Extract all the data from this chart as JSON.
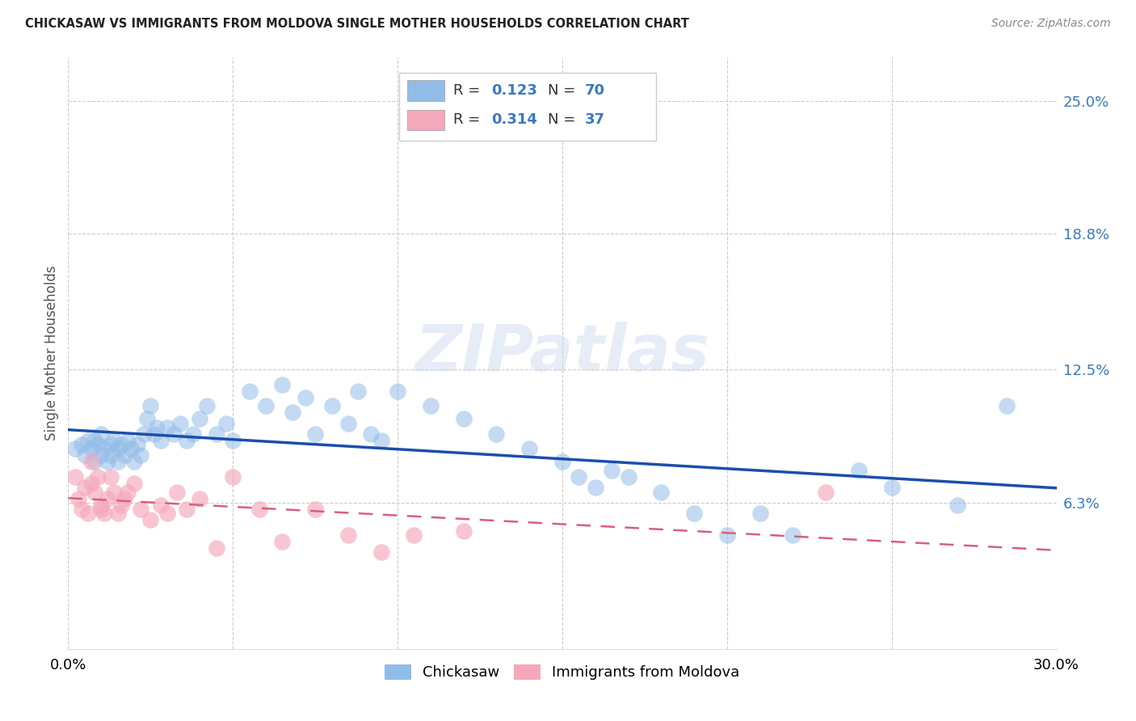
{
  "title": "CHICKASAW VS IMMIGRANTS FROM MOLDOVA SINGLE MOTHER HOUSEHOLDS CORRELATION CHART",
  "source": "Source: ZipAtlas.com",
  "ylabel": "Single Mother Households",
  "xlim": [
    0.0,
    0.3
  ],
  "ylim": [
    -0.005,
    0.27
  ],
  "yticks": [
    0.063,
    0.125,
    0.188,
    0.25
  ],
  "ytick_labels": [
    "6.3%",
    "12.5%",
    "18.8%",
    "25.0%"
  ],
  "xticks": [
    0.0,
    0.05,
    0.1,
    0.15,
    0.2,
    0.25,
    0.3
  ],
  "xtick_labels": [
    "0.0%",
    "",
    "",
    "",
    "",
    "",
    "30.0%"
  ],
  "grid_color": "#cccccc",
  "background_color": "#ffffff",
  "series1_color": "#92bce8",
  "series2_color": "#f5a8bc",
  "series1_label": "Chickasaw",
  "series2_label": "Immigrants from Moldova",
  "R1": "0.123",
  "N1": "70",
  "R2": "0.314",
  "N2": "37",
  "trend1_color": "#1a4faa",
  "trend2_color": "#d95f7a",
  "watermark": "ZIPatlas",
  "chickasaw_x": [
    0.002,
    0.004,
    0.005,
    0.006,
    0.007,
    0.008,
    0.008,
    0.009,
    0.01,
    0.01,
    0.011,
    0.012,
    0.013,
    0.013,
    0.014,
    0.015,
    0.015,
    0.016,
    0.017,
    0.018,
    0.019,
    0.02,
    0.021,
    0.022,
    0.023,
    0.024,
    0.025,
    0.026,
    0.027,
    0.028,
    0.03,
    0.032,
    0.034,
    0.036,
    0.038,
    0.04,
    0.042,
    0.045,
    0.048,
    0.05,
    0.055,
    0.06,
    0.065,
    0.068,
    0.072,
    0.075,
    0.08,
    0.085,
    0.088,
    0.092,
    0.095,
    0.1,
    0.11,
    0.12,
    0.13,
    0.14,
    0.15,
    0.155,
    0.16,
    0.165,
    0.17,
    0.18,
    0.19,
    0.2,
    0.21,
    0.22,
    0.24,
    0.25,
    0.27,
    0.285
  ],
  "chickasaw_y": [
    0.088,
    0.09,
    0.085,
    0.092,
    0.088,
    0.092,
    0.082,
    0.09,
    0.085,
    0.095,
    0.088,
    0.082,
    0.09,
    0.085,
    0.092,
    0.088,
    0.082,
    0.09,
    0.085,
    0.092,
    0.088,
    0.082,
    0.09,
    0.085,
    0.095,
    0.102,
    0.108,
    0.095,
    0.098,
    0.092,
    0.098,
    0.095,
    0.1,
    0.092,
    0.095,
    0.102,
    0.108,
    0.095,
    0.1,
    0.092,
    0.115,
    0.108,
    0.118,
    0.105,
    0.112,
    0.095,
    0.108,
    0.1,
    0.115,
    0.095,
    0.092,
    0.115,
    0.108,
    0.102,
    0.095,
    0.088,
    0.082,
    0.075,
    0.07,
    0.078,
    0.075,
    0.068,
    0.058,
    0.048,
    0.058,
    0.048,
    0.078,
    0.07,
    0.062,
    0.108
  ],
  "moldova_x": [
    0.002,
    0.003,
    0.004,
    0.005,
    0.006,
    0.007,
    0.007,
    0.008,
    0.009,
    0.01,
    0.01,
    0.011,
    0.012,
    0.013,
    0.014,
    0.015,
    0.016,
    0.017,
    0.018,
    0.02,
    0.022,
    0.025,
    0.028,
    0.03,
    0.033,
    0.036,
    0.04,
    0.045,
    0.05,
    0.058,
    0.065,
    0.075,
    0.085,
    0.095,
    0.105,
    0.12,
    0.23
  ],
  "moldova_y": [
    0.075,
    0.065,
    0.06,
    0.07,
    0.058,
    0.072,
    0.082,
    0.068,
    0.075,
    0.06,
    0.062,
    0.058,
    0.065,
    0.075,
    0.068,
    0.058,
    0.062,
    0.065,
    0.068,
    0.072,
    0.06,
    0.055,
    0.062,
    0.058,
    0.068,
    0.06,
    0.065,
    0.042,
    0.075,
    0.06,
    0.045,
    0.06,
    0.048,
    0.04,
    0.048,
    0.05,
    0.068
  ]
}
